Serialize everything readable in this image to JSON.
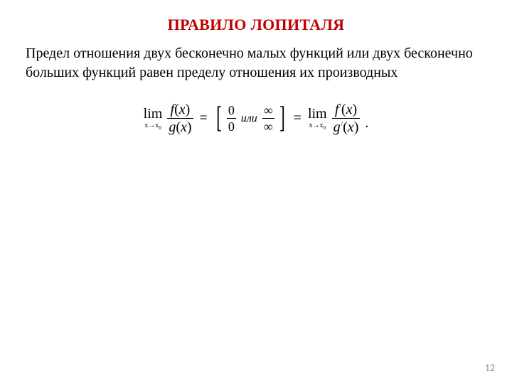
{
  "title": {
    "text": "ПРАВИЛО ЛОПИТАЛЯ",
    "color": "#c00000",
    "fontsize": 22
  },
  "body": {
    "text": "Предел отношения двух бесконечно малых функций или двух бесконечно больших функций равен пределу отношения их производных",
    "color": "#000000",
    "fontsize": 20
  },
  "formula": {
    "lim_word": "lim",
    "lim_sub_left": "x→x",
    "lim_sub_zero": "0",
    "f": "f",
    "g": "g",
    "x_in_paren": "x",
    "lparen": "(",
    "rparen": ")",
    "eq": "=",
    "lbracket": "[",
    "rbracket": "]",
    "zero": "0",
    "infty": "∞",
    "or_word": "или",
    "prime": "/",
    "period": ".",
    "color": "#000000",
    "font_family": "Times New Roman"
  },
  "page_number": {
    "value": "12",
    "color": "#898989",
    "fontsize": 14
  },
  "background_color": "#ffffff"
}
